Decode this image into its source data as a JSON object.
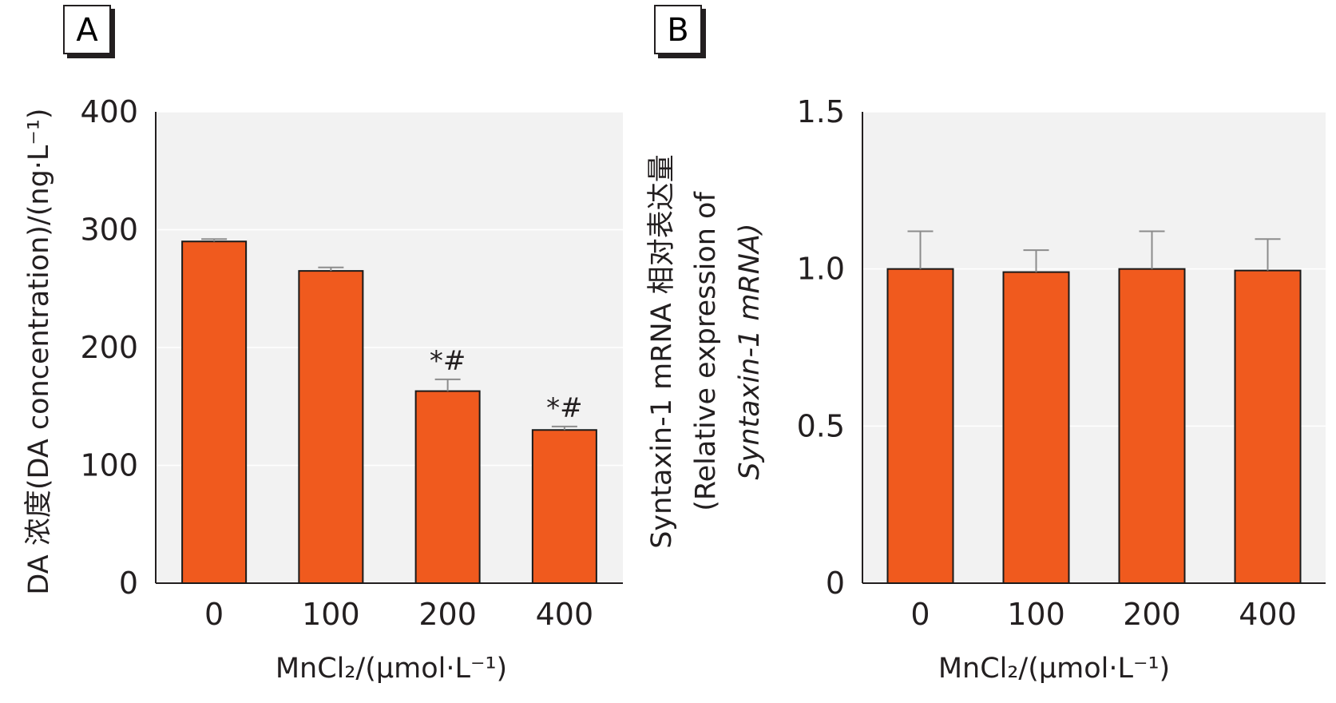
{
  "colors": {
    "bar": "#f05a1e",
    "bar_edge": "#1a1a1a",
    "plot_bg": "#f2f2f2",
    "grid": "#ffffff",
    "error": "#8c8c8c",
    "text": "#231f20"
  },
  "chart_data": [
    {
      "type": "bar",
      "panel_label": "A",
      "categories": [
        "0",
        "100",
        "200",
        "400"
      ],
      "values": [
        290,
        265,
        163,
        130
      ],
      "errors": [
        2,
        3,
        10,
        3
      ],
      "annotations": [
        "",
        "",
        "*#",
        "*#"
      ],
      "ylim": [
        0,
        400
      ],
      "yticks": [
        "0",
        "100",
        "200",
        "300",
        "400"
      ],
      "ytick_values": [
        0,
        100,
        200,
        300,
        400
      ],
      "ylabel": "DA 浓度(DA concentration)/(ng·L⁻¹)",
      "xlabel": "MnCl₂/(μmol·L⁻¹)",
      "grid": true
    },
    {
      "type": "bar",
      "panel_label": "B",
      "categories": [
        "0",
        "100",
        "200",
        "400"
      ],
      "values": [
        1.0,
        0.99,
        1.0,
        0.995
      ],
      "errors": [
        0.12,
        0.07,
        0.12,
        0.1
      ],
      "annotations": [
        "",
        "",
        "",
        ""
      ],
      "ylim": [
        0,
        1.5
      ],
      "yticks": [
        "0",
        "0.5",
        "1.0",
        "1.5"
      ],
      "ytick_values": [
        0,
        0.5,
        1.0,
        1.5
      ],
      "ylabel_line1": "Syntaxin-1 mRNA 相对表达量",
      "ylabel_line2": "(Relative expression of",
      "ylabel_line3": "Syntaxin-1 mRNA)",
      "xlabel": "MnCl₂/(μmol·L⁻¹)",
      "grid": true
    }
  ]
}
